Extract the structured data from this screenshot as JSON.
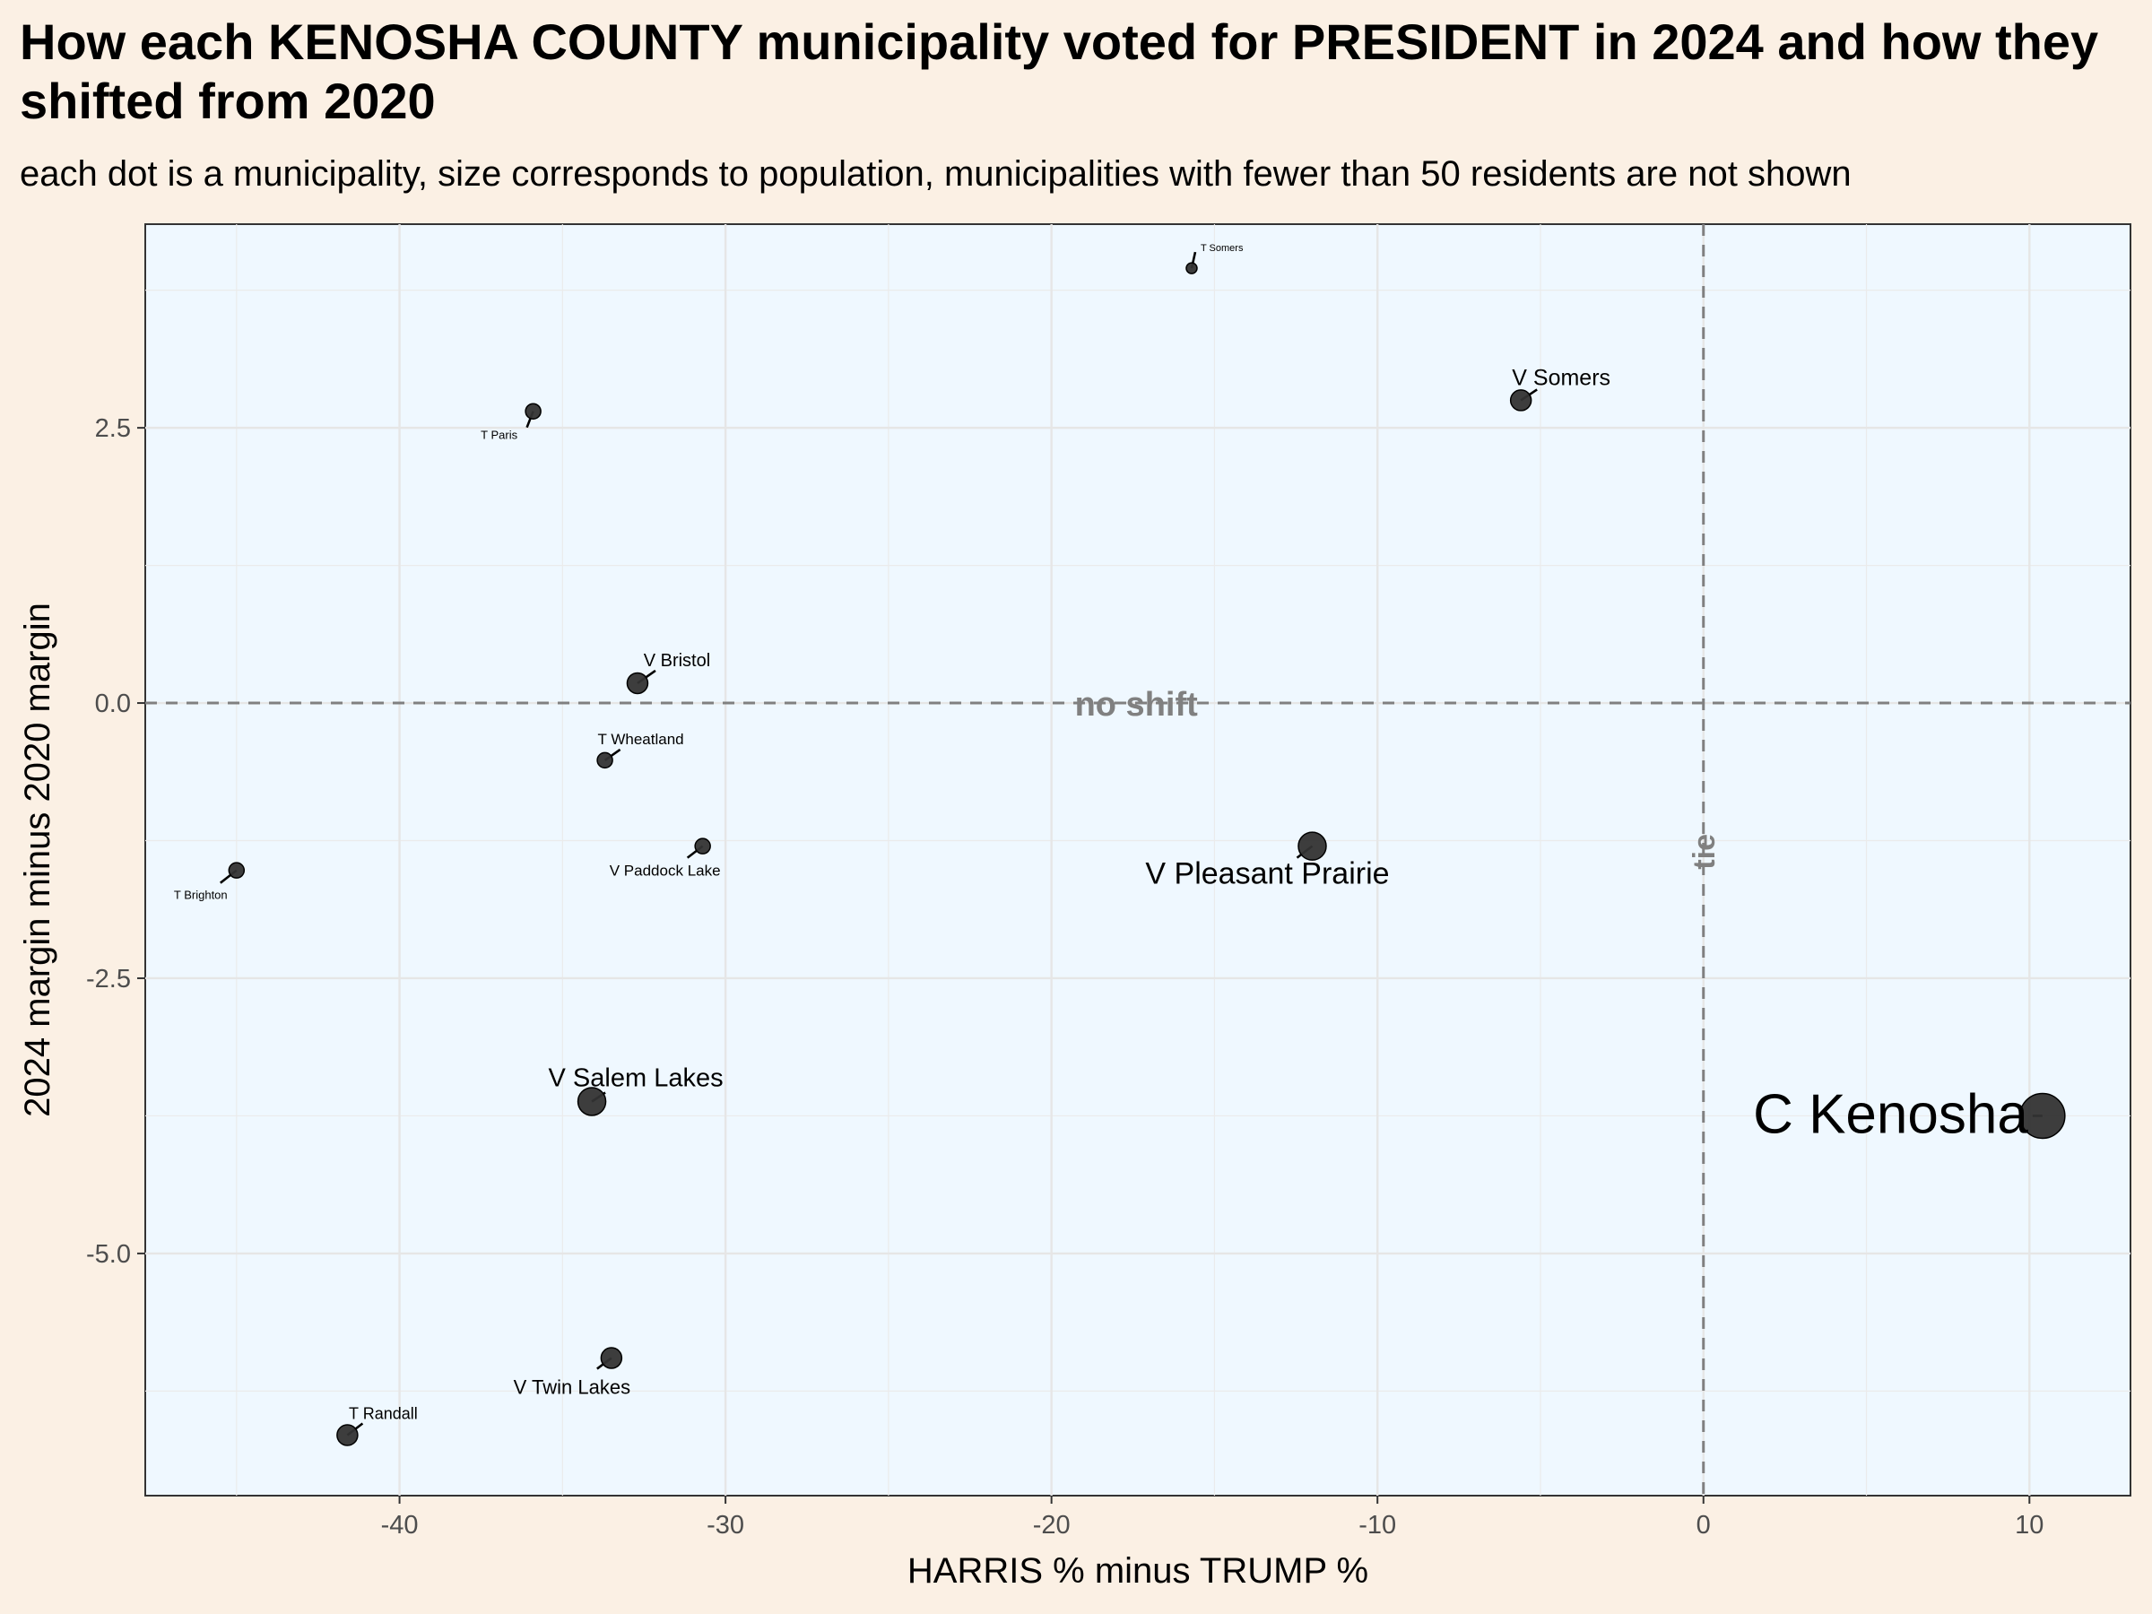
{
  "chart_data": {
    "type": "scatter",
    "title": "How each KENOSHA COUNTY municipality voted for PRESIDENT in 2024 and how they shifted from 2020",
    "subtitle": "each dot is a municipality, size corresponds to population, municipalities with fewer than 50 residents are not shown",
    "xlabel": "HARRIS % minus TRUMP %",
    "ylabel": "2024 margin minus 2020 margin",
    "xlim": [
      -47.8,
      13.1
    ],
    "ylim": [
      -7.2,
      4.35
    ],
    "xticks": [
      -40,
      -30,
      -20,
      -10,
      0,
      10
    ],
    "xtick_labels": [
      "-40",
      "-30",
      "-20",
      "-10",
      "0",
      "10"
    ],
    "yticks": [
      -5.0,
      -2.5,
      0.0,
      2.5
    ],
    "ytick_labels": [
      "-5.0",
      "-2.5",
      "0.0",
      "2.5"
    ],
    "grid": true,
    "reference_lines": {
      "horizontal": {
        "y": 0,
        "label": "no shift"
      },
      "vertical": {
        "x": 0,
        "label": "tie"
      }
    },
    "colors": {
      "panel": "#eff8ff",
      "background": "#fbf0e4",
      "point": "#333333",
      "reference": "#808080"
    },
    "points": [
      {
        "name": "T Somers",
        "x": -15.7,
        "y": 3.95,
        "size": "tiny"
      },
      {
        "name": "V Somers",
        "x": -5.6,
        "y": 2.75,
        "size": "medium"
      },
      {
        "name": "T Paris",
        "x": -35.9,
        "y": 2.65,
        "size": "small"
      },
      {
        "name": "V Bristol",
        "x": -32.7,
        "y": 0.18,
        "size": "medium"
      },
      {
        "name": "T Wheatland",
        "x": -33.7,
        "y": -0.52,
        "size": "small"
      },
      {
        "name": "V Paddock Lake",
        "x": -30.7,
        "y": -1.3,
        "size": "small"
      },
      {
        "name": "T Brighton",
        "x": -45.0,
        "y": -1.52,
        "size": "small"
      },
      {
        "name": "V Pleasant Prairie",
        "x": -12.0,
        "y": -1.3,
        "size": "large"
      },
      {
        "name": "V Salem Lakes",
        "x": -34.1,
        "y": -3.62,
        "size": "large"
      },
      {
        "name": "C Kenosha",
        "x": 10.4,
        "y": -3.75,
        "size": "xlarge"
      },
      {
        "name": "V Twin Lakes",
        "x": -33.5,
        "y": -5.95,
        "size": "medium"
      },
      {
        "name": "T Randall",
        "x": -41.6,
        "y": -6.65,
        "size": "medium"
      }
    ]
  }
}
